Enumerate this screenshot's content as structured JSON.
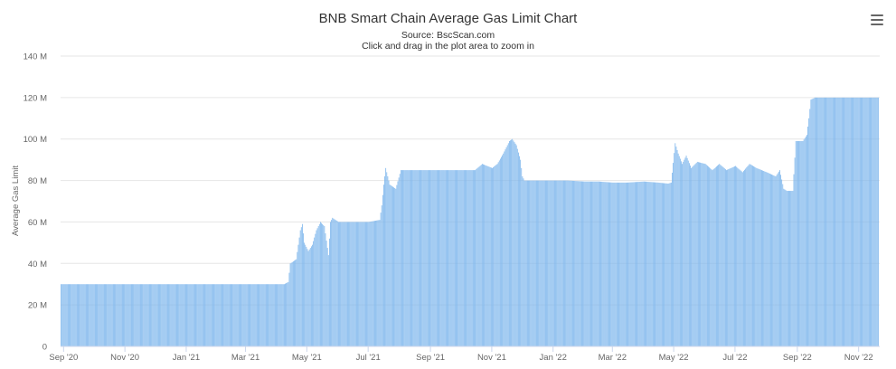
{
  "chart_data": {
    "type": "bar",
    "title": "BNB Smart Chain Average Gas Limit Chart",
    "subtitle": "Source: BscScan.com",
    "subtitle2": "Click and drag in the plot area to zoom in",
    "ylabel": "Average Gas Limit",
    "xlabel": "",
    "ylim": [
      0,
      140000000
    ],
    "yticks": [
      0,
      20000000,
      40000000,
      60000000,
      80000000,
      100000000,
      120000000,
      140000000
    ],
    "ytick_labels": [
      "0",
      "20 M",
      "40 M",
      "60 M",
      "80 M",
      "100 M",
      "120 M",
      "140 M"
    ],
    "xlim": [
      "2020-08-29",
      "2022-11-22"
    ],
    "xticks": [
      "2020-09-01",
      "2020-11-01",
      "2021-01-01",
      "2021-03-01",
      "2021-05-01",
      "2021-07-01",
      "2021-09-01",
      "2021-11-01",
      "2022-01-01",
      "2022-03-01",
      "2022-05-01",
      "2022-07-01",
      "2022-09-01",
      "2022-11-01"
    ],
    "xtick_labels": [
      "Sep '20",
      "Nov '20",
      "Jan '21",
      "Mar '21",
      "May '21",
      "Jul '21",
      "Sep '21",
      "Nov '21",
      "Jan '22",
      "Mar '22",
      "May '22",
      "Jul '22",
      "Sep '22",
      "Nov '22"
    ],
    "bar_color": "#7cb5ec",
    "grid": "horizontal",
    "legend": "none",
    "series": [
      {
        "points": [
          [
            "2020-08-29",
            30000000
          ],
          [
            "2020-09-15",
            30000000
          ],
          [
            "2020-10-15",
            30000000
          ],
          [
            "2020-11-15",
            30000000
          ],
          [
            "2020-12-15",
            30000000
          ],
          [
            "2021-01-15",
            30000000
          ],
          [
            "2021-02-15",
            30000000
          ],
          [
            "2021-03-15",
            30000000
          ],
          [
            "2021-04-08",
            30000000
          ],
          [
            "2021-04-12",
            31000000
          ],
          [
            "2021-04-14",
            40000000
          ],
          [
            "2021-04-20",
            42000000
          ],
          [
            "2021-04-24",
            56000000
          ],
          [
            "2021-04-26",
            59000000
          ],
          [
            "2021-04-28",
            50000000
          ],
          [
            "2021-05-02",
            46000000
          ],
          [
            "2021-05-06",
            49000000
          ],
          [
            "2021-05-10",
            56000000
          ],
          [
            "2021-05-14",
            60000000
          ],
          [
            "2021-05-18",
            58000000
          ],
          [
            "2021-05-22",
            44000000
          ],
          [
            "2021-05-24",
            60000000
          ],
          [
            "2021-05-26",
            62000000
          ],
          [
            "2021-06-01",
            60000000
          ],
          [
            "2021-06-15",
            60000000
          ],
          [
            "2021-07-01",
            60000000
          ],
          [
            "2021-07-12",
            61000000
          ],
          [
            "2021-07-14",
            68000000
          ],
          [
            "2021-07-16",
            78000000
          ],
          [
            "2021-07-18",
            86000000
          ],
          [
            "2021-07-22",
            78000000
          ],
          [
            "2021-07-28",
            76000000
          ],
          [
            "2021-08-02",
            85000000
          ],
          [
            "2021-08-15",
            85000000
          ],
          [
            "2021-09-01",
            85000000
          ],
          [
            "2021-09-15",
            85000000
          ],
          [
            "2021-10-01",
            85000000
          ],
          [
            "2021-10-15",
            85000000
          ],
          [
            "2021-10-22",
            88000000
          ],
          [
            "2021-11-01",
            86000000
          ],
          [
            "2021-11-06",
            88000000
          ],
          [
            "2021-11-12",
            93000000
          ],
          [
            "2021-11-18",
            99000000
          ],
          [
            "2021-11-21",
            100000000
          ],
          [
            "2021-11-25",
            97000000
          ],
          [
            "2021-11-29",
            90000000
          ],
          [
            "2021-12-01",
            82000000
          ],
          [
            "2021-12-03",
            80000000
          ],
          [
            "2021-12-15",
            80000000
          ],
          [
            "2022-01-01",
            80000000
          ],
          [
            "2022-01-15",
            80000000
          ],
          [
            "2022-02-01",
            79500000
          ],
          [
            "2022-02-15",
            79500000
          ],
          [
            "2022-03-01",
            79000000
          ],
          [
            "2022-03-15",
            79000000
          ],
          [
            "2022-04-01",
            79500000
          ],
          [
            "2022-04-15",
            79000000
          ],
          [
            "2022-04-25",
            78500000
          ],
          [
            "2022-04-28",
            79000000
          ],
          [
            "2022-05-02",
            98000000
          ],
          [
            "2022-05-05",
            93000000
          ],
          [
            "2022-05-09",
            88000000
          ],
          [
            "2022-05-13",
            92000000
          ],
          [
            "2022-05-18",
            86000000
          ],
          [
            "2022-05-24",
            89000000
          ],
          [
            "2022-06-01",
            88000000
          ],
          [
            "2022-06-08",
            85000000
          ],
          [
            "2022-06-15",
            88000000
          ],
          [
            "2022-06-22",
            85000000
          ],
          [
            "2022-07-01",
            87000000
          ],
          [
            "2022-07-08",
            84000000
          ],
          [
            "2022-07-15",
            88000000
          ],
          [
            "2022-07-22",
            86000000
          ],
          [
            "2022-08-01",
            84000000
          ],
          [
            "2022-08-10",
            82000000
          ],
          [
            "2022-08-14",
            85000000
          ],
          [
            "2022-08-18",
            76000000
          ],
          [
            "2022-08-21",
            75000000
          ],
          [
            "2022-08-27",
            75000000
          ],
          [
            "2022-08-30",
            99000000
          ],
          [
            "2022-09-06",
            99000000
          ],
          [
            "2022-09-10",
            102000000
          ],
          [
            "2022-09-12",
            110000000
          ],
          [
            "2022-09-14",
            119000000
          ],
          [
            "2022-09-18",
            120000000
          ],
          [
            "2022-10-01",
            120000000
          ],
          [
            "2022-10-15",
            120000000
          ],
          [
            "2022-11-01",
            120000000
          ],
          [
            "2022-11-20",
            120000000
          ]
        ]
      }
    ]
  }
}
